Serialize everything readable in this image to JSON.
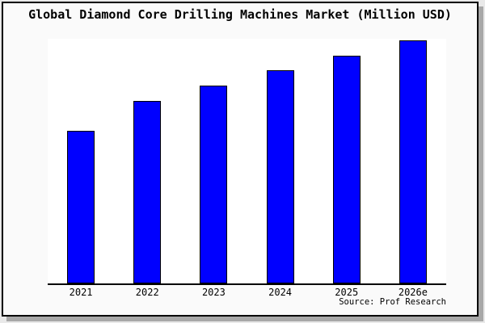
{
  "chart_data": {
    "type": "bar",
    "title": "Global Diamond Core Drilling Machines Market (Million USD)",
    "categories": [
      "2021",
      "2022",
      "2023",
      "2024",
      "2025",
      "2026e"
    ],
    "values": [
      189,
      226,
      245,
      264,
      282,
      301
    ],
    "xlabel": "",
    "ylabel": "",
    "ylim": [
      0,
      303
    ],
    "grid": false,
    "legend": null,
    "source": "Source: Prof Research",
    "bar_color": "#0000ff",
    "bar_edge_color": "#000000",
    "plot_bg_color": "#ffffff",
    "figure_bg_color": "#fafafa",
    "axis_color": "#000000"
  }
}
